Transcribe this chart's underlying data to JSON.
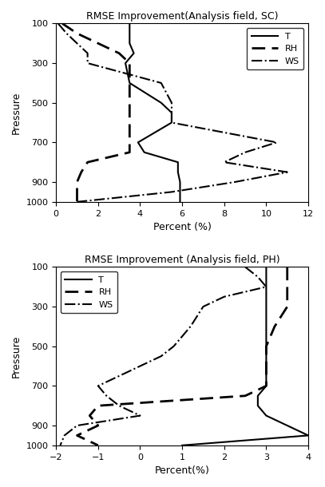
{
  "title_sc": "RMSE Improvement(Analysis field, SC)",
  "title_ph": "RMSE Improvement (Analysis field, PH)",
  "ylabel": "Pressure",
  "xlabel_sc": "Percent (%)",
  "xlabel_ph": "Percent(%)",
  "pressure_levels": [
    100,
    150,
    200,
    250,
    300,
    400,
    500,
    550,
    600,
    700,
    750,
    800,
    850,
    900,
    950,
    1000
  ],
  "sc_T": [
    3.5,
    3.5,
    3.5,
    3.7,
    3.3,
    3.5,
    5.0,
    5.5,
    5.5,
    3.9,
    4.2,
    5.8,
    5.8,
    5.9,
    5.9,
    5.9
  ],
  "sc_RH": [
    0.3,
    1.0,
    2.0,
    3.0,
    3.5,
    3.5,
    3.5,
    3.5,
    3.5,
    3.5,
    3.5,
    1.5,
    1.2,
    1.0,
    1.0,
    1.0
  ],
  "sc_WS": [
    0.1,
    0.5,
    1.0,
    1.5,
    1.5,
    5.0,
    5.5,
    5.5,
    5.5,
    10.5,
    9.0,
    8.0,
    11.0,
    8.5,
    5.5,
    1.0
  ],
  "ph_T": [
    3.0,
    3.0,
    3.0,
    3.0,
    3.0,
    3.0,
    3.0,
    3.0,
    3.0,
    3.0,
    2.8,
    2.8,
    3.0,
    3.5,
    4.0,
    1.0
  ],
  "ph_RH": [
    3.5,
    3.5,
    3.5,
    3.5,
    3.5,
    3.2,
    3.0,
    3.0,
    3.0,
    3.0,
    2.5,
    -1.0,
    -1.2,
    -1.0,
    -1.5,
    -1.0
  ],
  "ph_WS": [
    2.5,
    2.8,
    3.0,
    2.0,
    1.5,
    1.2,
    0.8,
    0.5,
    0.0,
    -1.0,
    -0.8,
    -0.5,
    0.0,
    -1.5,
    -1.8,
    -1.9
  ],
  "xlim_sc": [
    0,
    12
  ],
  "xlim_ph": [
    -2,
    4
  ],
  "xticks_sc": [
    0,
    2,
    4,
    6,
    8,
    10,
    12
  ],
  "xticks_ph": [
    -2,
    -1,
    0,
    1,
    2,
    3,
    4
  ],
  "yticks": [
    100,
    300,
    500,
    700,
    900,
    1000
  ],
  "ylim": [
    100,
    1000
  ],
  "line_color": "#000000",
  "bg_color": "#ffffff",
  "legend_labels": [
    "T",
    "RH",
    "WS"
  ]
}
